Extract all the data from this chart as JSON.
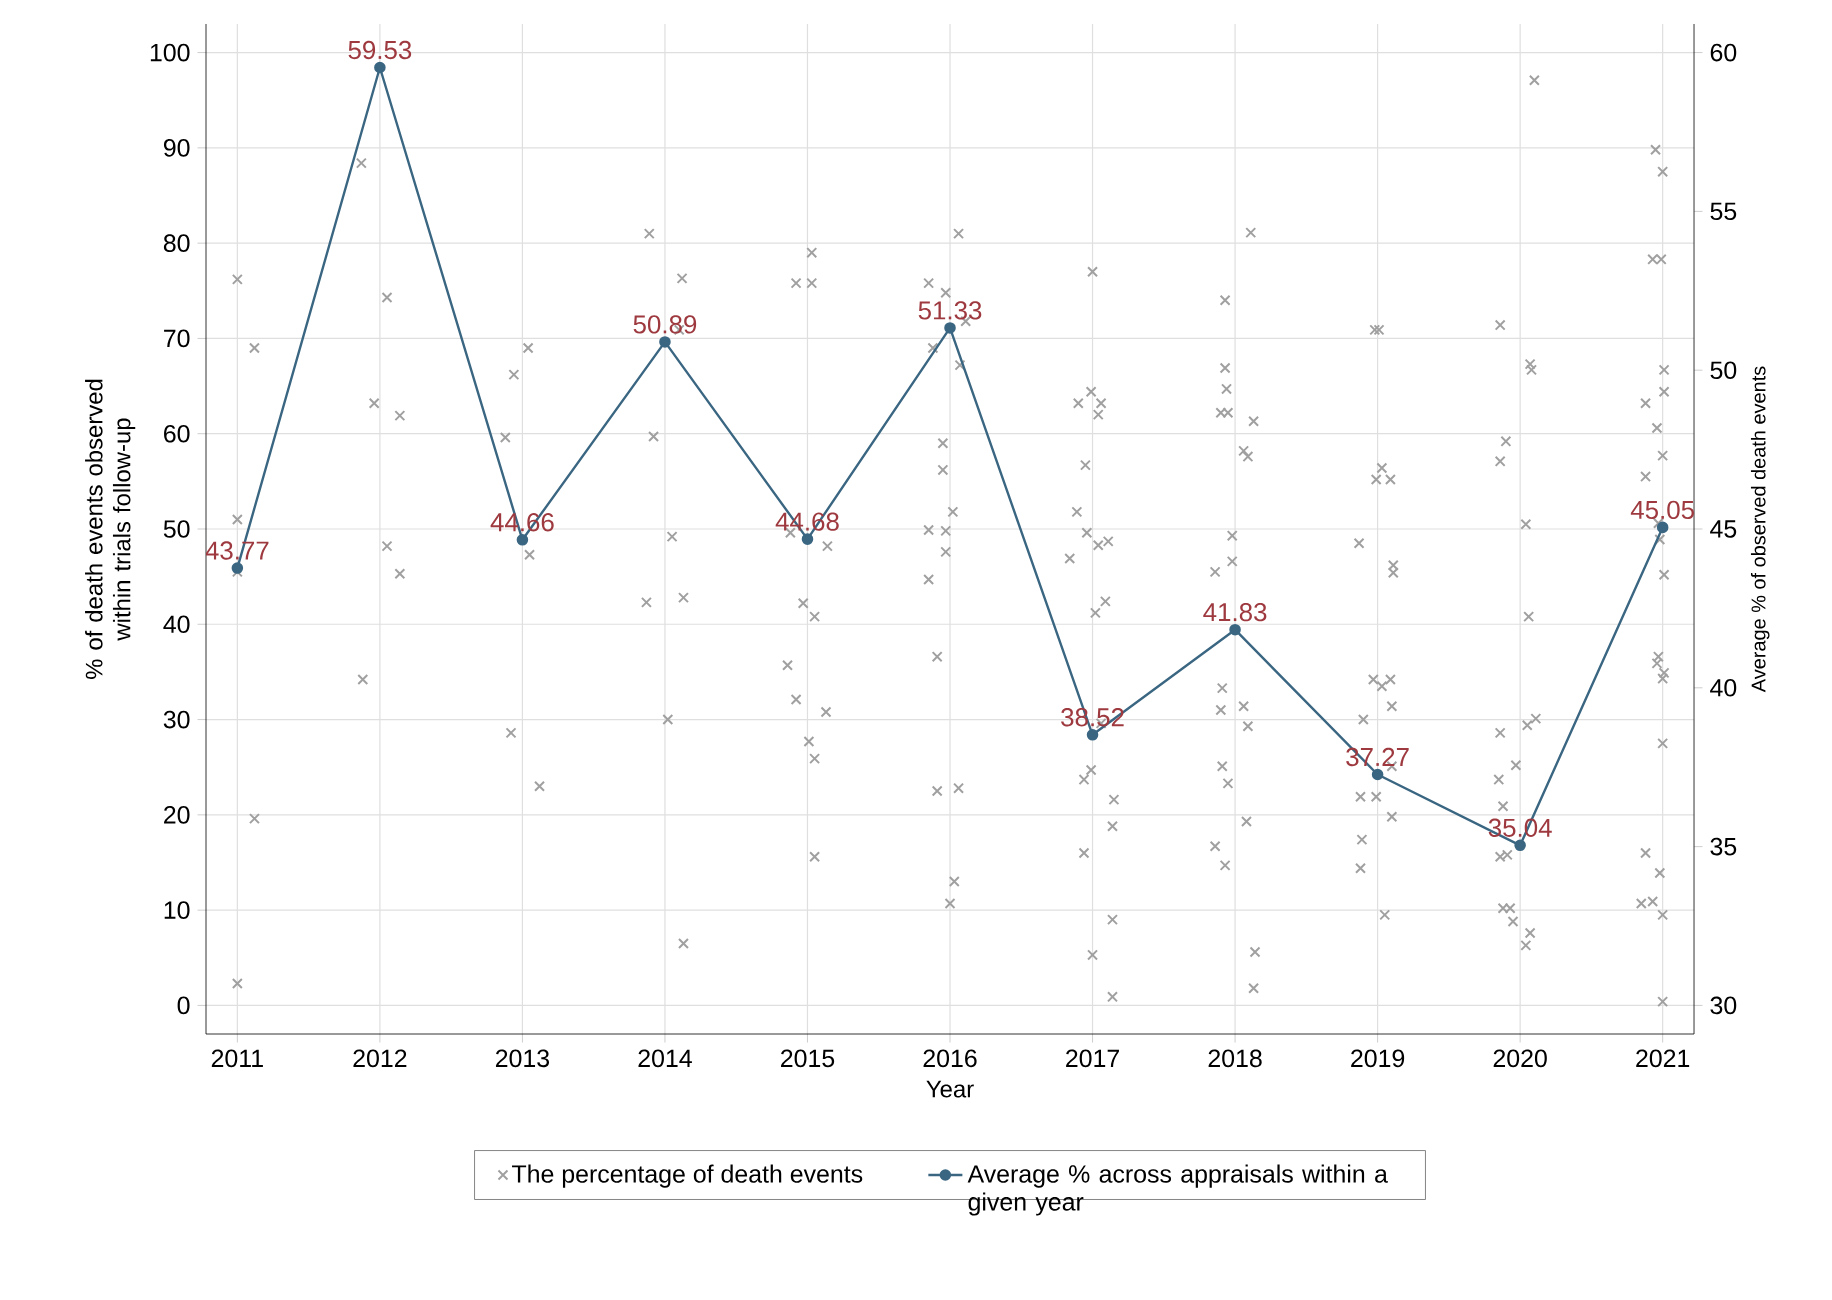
{
  "chart_data": {
    "type": "scatter",
    "xlabel": "Year",
    "ylabel": "% of death events observed within trials follow-up",
    "y2label": "Average % of observed death events",
    "xlim": [
      2010.78,
      2021.22
    ],
    "xticks": [
      2011,
      2012,
      2013,
      2014,
      2015,
      2016,
      2017,
      2018,
      2019,
      2020,
      2021
    ],
    "ylim": [
      -3,
      103
    ],
    "yticks": [
      0,
      10,
      20,
      30,
      40,
      50,
      60,
      70,
      80,
      90,
      100
    ],
    "y2lim": [
      29.1,
      60.9
    ],
    "y2ticks": [
      30,
      35,
      40,
      45,
      50,
      55,
      60
    ],
    "grid": true,
    "legend": "bottom",
    "series": [
      {
        "name": "The percentage of death events",
        "marker": "cross",
        "color": "#a0a0a0",
        "x": [
          2011,
          2011.12,
          2011.12,
          2011,
          2011,
          2011,
          2011.87,
          2012.05,
          2011.96,
          2012.14,
          2012.05,
          2012.14,
          2011.88,
          2013.04,
          2012.94,
          2012.88,
          2013.05,
          2012.92,
          2013.12,
          2013.89,
          2014.12,
          2014.1,
          2013.92,
          2014.05,
          2014.13,
          2013.87,
          2014.02,
          2014.13,
          2015.03,
          2014.92,
          2015.03,
          2014.88,
          2015.14,
          2014.97,
          2015.05,
          2014.86,
          2014.92,
          2015.13,
          2015.01,
          2015.05,
          2015.05,
          2016.06,
          2015.85,
          2015.97,
          2016.11,
          2015.88,
          2016.07,
          2015.95,
          2015.95,
          2016.02,
          2015.85,
          2015.97,
          2015.97,
          2015.85,
          2015.91,
          2015.91,
          2016.06,
          2016.03,
          2016.0,
          2017,
          2016.9,
          2016.99,
          2017.06,
          2017.04,
          2016.95,
          2016.89,
          2016.96,
          2017.04,
          2017.11,
          2016.84,
          2017.09,
          2017.02,
          2017.06,
          2016.94,
          2016.99,
          2017.15,
          2017.14,
          2016.94,
          2017.14,
          2017,
          2017.14,
          2018.11,
          2017.93,
          2017.93,
          2017.94,
          2017.9,
          2017.95,
          2018.13,
          2018.06,
          2018.09,
          2017.98,
          2017.98,
          2017.86,
          2017.91,
          2017.9,
          2018.06,
          2018.09,
          2017.91,
          2017.95,
          2018.08,
          2017.86,
          2017.93,
          2018.14,
          2018.13,
          2018.98,
          2019.01,
          2019.03,
          2018.99,
          2019.09,
          2018.87,
          2019.11,
          2019.11,
          2018.97,
          2019.09,
          2019.03,
          2019.1,
          2018.9,
          2019.1,
          2018.88,
          2018.99,
          2019.1,
          2018.89,
          2018.88,
          2019.05,
          2020.1,
          2019.86,
          2020.07,
          2020.08,
          2019.9,
          2019.86,
          2020.04,
          2020.06,
          2020.11,
          2020.05,
          2019.86,
          2019.97,
          2019.85,
          2019.88,
          2019.86,
          2019.91,
          2019.88,
          2019.93,
          2019.95,
          2020.07,
          2020.04,
          2020.95,
          2021.0,
          2020.93,
          2020.99,
          2021.01,
          2020.88,
          2021.01,
          2020.96,
          2021.0,
          2020.88,
          2020.97,
          2020.98,
          2021.01,
          2020.97,
          2020.96,
          2021.01,
          2021.0,
          2021.0,
          2020.88,
          2020.85,
          2020.93,
          2020.98,
          2021.0,
          2021.0
        ],
        "values": [
          76.2,
          69.0,
          19.6,
          51.0,
          45.5,
          2.3,
          88.4,
          74.3,
          63.2,
          61.9,
          48.2,
          45.3,
          34.2,
          69.0,
          66.2,
          59.6,
          47.3,
          28.6,
          23.0,
          81.0,
          76.3,
          70.9,
          59.7,
          49.2,
          42.8,
          42.3,
          30.0,
          6.5,
          79.0,
          75.8,
          75.8,
          49.6,
          48.2,
          42.2,
          40.8,
          35.7,
          32.1,
          30.8,
          27.7,
          25.9,
          15.6,
          81.0,
          75.8,
          74.8,
          71.8,
          69.0,
          67.2,
          59.0,
          56.2,
          51.8,
          49.9,
          49.8,
          47.6,
          44.7,
          36.6,
          22.5,
          22.8,
          13.0,
          10.7,
          77.0,
          63.2,
          64.4,
          63.2,
          62.0,
          56.7,
          51.8,
          49.6,
          48.3,
          48.7,
          46.9,
          42.4,
          41.2,
          29.6,
          23.7,
          24.7,
          21.6,
          18.8,
          16.0,
          9.0,
          5.3,
          0.9,
          81.1,
          74.0,
          66.9,
          64.7,
          62.2,
          62.2,
          61.3,
          58.2,
          57.6,
          49.3,
          46.6,
          45.5,
          33.3,
          31.0,
          31.4,
          29.3,
          25.1,
          23.3,
          19.3,
          16.7,
          14.7,
          5.6,
          1.8,
          70.9,
          70.9,
          56.4,
          55.2,
          55.2,
          48.5,
          46.2,
          45.4,
          34.2,
          34.2,
          33.5,
          31.4,
          30.0,
          25.1,
          21.9,
          21.9,
          19.8,
          17.4,
          14.4,
          9.5,
          97.1,
          71.4,
          67.3,
          66.7,
          59.2,
          57.1,
          50.5,
          40.8,
          30.1,
          29.4,
          28.6,
          25.2,
          23.7,
          20.9,
          15.6,
          15.8,
          10.2,
          10.2,
          8.8,
          7.6,
          6.3,
          89.8,
          87.5,
          78.3,
          78.3,
          66.7,
          63.2,
          64.4,
          60.6,
          57.7,
          55.5,
          50.6,
          48.9,
          45.2,
          36.6,
          35.9,
          34.9,
          34.3,
          27.5,
          16.0,
          10.7,
          10.9,
          13.9,
          9.5,
          0.4
        ]
      },
      {
        "name": "Average % across appraisals within a given year",
        "type": "line",
        "axis": "y2",
        "marker": "circle",
        "line_style": "solid",
        "color": "#3a6682",
        "data_labels": true,
        "x": [
          2011,
          2012,
          2013,
          2014,
          2015,
          2016,
          2017,
          2018,
          2019,
          2020,
          2021
        ],
        "values": [
          43.77,
          59.53,
          44.66,
          50.89,
          44.68,
          51.33,
          38.52,
          41.83,
          37.27,
          35.04,
          45.05
        ]
      }
    ]
  }
}
